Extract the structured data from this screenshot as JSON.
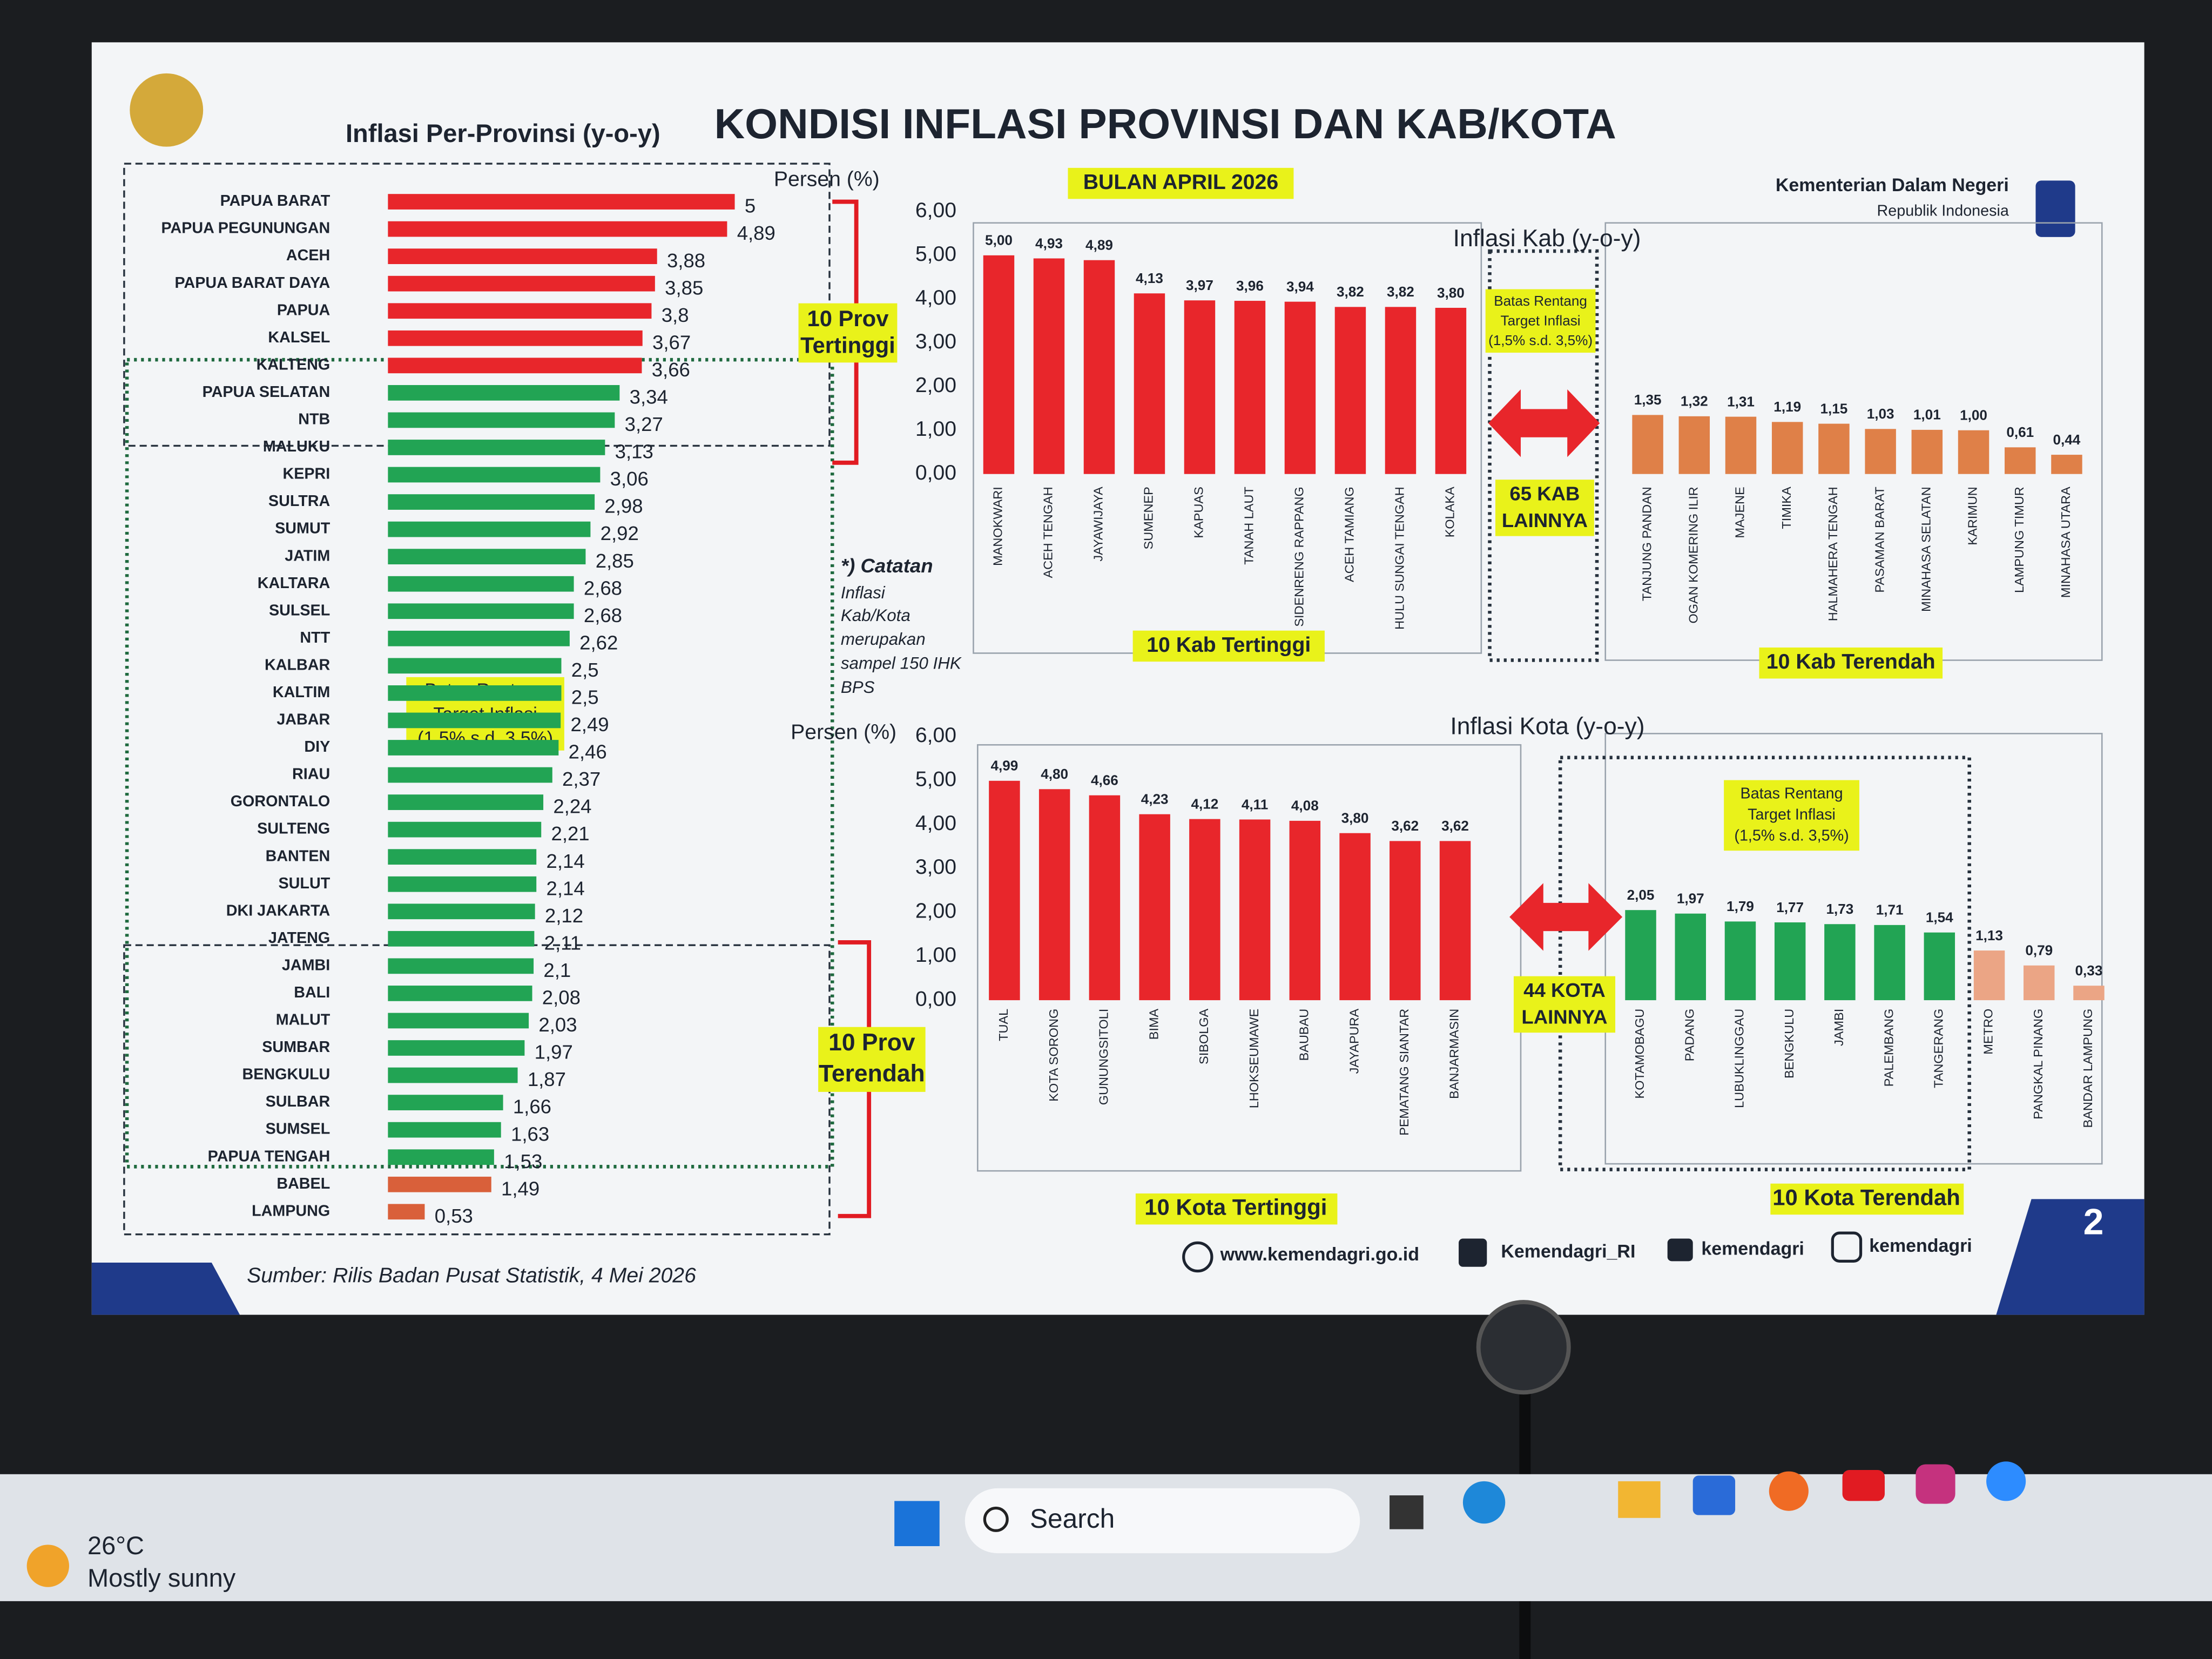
{
  "slide": {
    "title": "KONDISI INFLASI PROVINSI DAN KAB/KOTA",
    "subtitle": "BULAN APRIL 2026",
    "org": "Kementerian Dalam Negeri",
    "org_sub": "Republik Indonesia",
    "source": "Sumber: Rilis Badan Pusat Statistik, 4 Mei 2026",
    "website": "www.kemendagri.go.id",
    "facebook": "Kemendagri_RI",
    "twitter": "kemendagri",
    "instagram": "kemendagri",
    "page": "2",
    "note": [
      "*) Catatan",
      "Inflasi",
      "Kab/Kota",
      "merupakan",
      "sampel 150 IHK",
      "BPS"
    ]
  },
  "taskbar": {
    "temperature": "26°C",
    "weather": "Mostly sunny",
    "search": "Search"
  },
  "chart_data": [
    {
      "type": "hbar",
      "title": "Inflasi Per-Provinsi (y-o-y)",
      "categories": [
        "PAPUA BARAT",
        "PAPUA PEGUNUNGAN",
        "ACEH",
        "PAPUA BARAT DAYA",
        "PAPUA",
        "KALSEL",
        "KALTENG",
        "PAPUA SELATAN",
        "NTB",
        "MALUKU",
        "KEPRI",
        "SULTRA",
        "SUMUT",
        "JATIM",
        "KALTARA",
        "SULSEL",
        "NTT",
        "KALBAR",
        "KALTIM",
        "JABAR",
        "DIY",
        "RIAU",
        "GORONTALO",
        "SULTENG",
        "BANTEN",
        "SULUT",
        "DKI JAKARTA",
        "JATENG",
        "JAMBI",
        "BALI",
        "MALUT",
        "SUMBAR",
        "BENGKULU",
        "SULBAR",
        "SUMSEL",
        "PAPUA TENGAH",
        "BABEL",
        "LAMPUNG"
      ],
      "values": [
        5,
        4.89,
        3.88,
        3.85,
        3.8,
        3.67,
        3.66,
        3.34,
        3.27,
        3.13,
        3.06,
        2.98,
        2.92,
        2.85,
        2.68,
        2.68,
        2.62,
        2.5,
        2.5,
        2.49,
        2.46,
        2.37,
        2.24,
        2.21,
        2.14,
        2.14,
        2.12,
        2.11,
        2.1,
        2.08,
        2.03,
        1.97,
        1.87,
        1.66,
        1.63,
        1.53,
        1.49,
        0.53
      ],
      "value_labels": [
        "5",
        "4,89",
        "3,88",
        "3,85",
        "3,8",
        "3,67",
        "3,66",
        "3,34",
        "3,27",
        "3,13",
        "3,06",
        "2,98",
        "2,92",
        "2,85",
        "2,68",
        "2,68",
        "2,62",
        "2,5",
        "2,5",
        "2,49",
        "2,46",
        "2,37",
        "2,24",
        "2,21",
        "2,14",
        "2,14",
        "2,12",
        "2,11",
        "2,1",
        "2,08",
        "2,03",
        "1,97",
        "1,87",
        "1,66",
        "1,63",
        "1,53",
        "1,49",
        "0,53"
      ],
      "colors": [
        "#e8262b",
        "#e8262b",
        "#e8262b",
        "#e8262b",
        "#e8262b",
        "#e8262b",
        "#e8262b",
        "#22a454",
        "#22a454",
        "#22a454",
        "#22a454",
        "#22a454",
        "#22a454",
        "#22a454",
        "#22a454",
        "#22a454",
        "#22a454",
        "#22a454",
        "#22a454",
        "#22a454",
        "#22a454",
        "#22a454",
        "#22a454",
        "#22a454",
        "#22a454",
        "#22a454",
        "#22a454",
        "#22a454",
        "#22a454",
        "#22a454",
        "#22a454",
        "#22a454",
        "#22a454",
        "#22a454",
        "#22a454",
        "#22a454",
        "#d9603a",
        "#d9603a"
      ],
      "xlim": [
        0,
        6
      ],
      "annotations": {
        "top": [
          "10 Prov",
          "Tertinggi"
        ],
        "bottom": [
          "10 Prov",
          "Terendah"
        ],
        "band": [
          "Batas Rentang",
          "Target Inflasi",
          "(1,5% s.d. 3,5%)"
        ]
      }
    },
    {
      "type": "bar",
      "title": "Inflasi Kab (y-o-y)",
      "y_label": "Persen (%)",
      "categories": [
        "MANOKWARI",
        "ACEH TENGAH",
        "JAYAWIJAYA",
        "SUMENEP",
        "KAPUAS",
        "TANAH LAUT",
        "SIDENRENG RAPPANG",
        "ACEH TAMIANG",
        "HULU SUNGAI TENGAH",
        "KOLAKA",
        "TANJUNG PANDAN",
        "OGAN KOMERING ILIR",
        "MAJENE",
        "TIMIKA",
        "HALMAHERA TENGAH",
        "PASAMAN BARAT",
        "MINAHASA SELATAN",
        "KARIMUN",
        "LAMPUNG TIMUR",
        "MINAHASA UTARA"
      ],
      "values": [
        5.0,
        4.93,
        4.89,
        4.13,
        3.97,
        3.96,
        3.94,
        3.82,
        3.82,
        3.8,
        1.35,
        1.32,
        1.31,
        1.19,
        1.15,
        1.03,
        1.01,
        1.0,
        0.61,
        0.44
      ],
      "value_labels": [
        "5,00",
        "4,93",
        "4,89",
        "4,13",
        "3,97",
        "3,96",
        "3,94",
        "3,82",
        "3,82",
        "3,80",
        "1,35",
        "1,32",
        "1,31",
        "1,19",
        "1,15",
        "1,03",
        "1,01",
        "1,00",
        "0,61",
        "0,44"
      ],
      "colors": [
        "#e8262b",
        "#e8262b",
        "#e8262b",
        "#e8262b",
        "#e8262b",
        "#e8262b",
        "#e8262b",
        "#e8262b",
        "#e8262b",
        "#e8262b",
        "#df8048",
        "#df8048",
        "#df8048",
        "#df8048",
        "#df8048",
        "#df8048",
        "#df8048",
        "#df8048",
        "#df8048",
        "#df8048"
      ],
      "ylim": [
        0,
        6
      ],
      "yticks": [
        {
          "value": 0,
          "label": "0,00"
        },
        {
          "value": 1,
          "label": "1,00"
        },
        {
          "value": 2,
          "label": "2,00"
        },
        {
          "value": 3,
          "label": "3,00"
        },
        {
          "value": 4,
          "label": "4,00"
        },
        {
          "value": 5,
          "label": "5,00"
        },
        {
          "value": 6,
          "label": "6,00"
        }
      ],
      "annotations": {
        "top": "10 Kab Tertinggi",
        "bottom": "10 Kab Terendah",
        "others": [
          "65 KAB",
          "LAINNYA"
        ],
        "band": [
          "Batas Rentang",
          "Target Inflasi",
          "(1,5% s.d. 3,5%)"
        ]
      }
    },
    {
      "type": "bar",
      "title": "Inflasi Kota (y-o-y)",
      "y_label": "Persen (%)",
      "categories": [
        "TUAL",
        "KOTA SORONG",
        "GUNUNGSITOLI",
        "BIMA",
        "SIBOLGA",
        "LHOKSEUMAWE",
        "BAUBAU",
        "JAYAPURA",
        "PEMATANG SIANTAR",
        "BANJARMASIN",
        "KOTAMOBAGU",
        "PADANG",
        "LUBUKLINGGAU",
        "BENGKULU",
        "JAMBI",
        "PALEMBANG",
        "TANGERANG",
        "METRO",
        "PANGKAL PINANG",
        "BANDAR LAMPUNG"
      ],
      "values": [
        4.99,
        4.8,
        4.66,
        4.23,
        4.12,
        4.11,
        4.08,
        3.8,
        3.62,
        3.62,
        2.05,
        1.97,
        1.79,
        1.77,
        1.73,
        1.71,
        1.54,
        1.13,
        0.79,
        0.33
      ],
      "value_labels": [
        "4,99",
        "4,80",
        "4,66",
        "4,23",
        "4,12",
        "4,11",
        "4,08",
        "3,80",
        "3,62",
        "3,62",
        "2,05",
        "1,97",
        "1,79",
        "1,77",
        "1,73",
        "1,71",
        "1,54",
        "1,13",
        "0,79",
        "0,33"
      ],
      "colors": [
        "#e8262b",
        "#e8262b",
        "#e8262b",
        "#e8262b",
        "#e8262b",
        "#e8262b",
        "#e8262b",
        "#e8262b",
        "#e8262b",
        "#e8262b",
        "#22a454",
        "#22a454",
        "#22a454",
        "#22a454",
        "#22a454",
        "#22a454",
        "#22a454",
        "#eba585",
        "#eba585",
        "#eba585"
      ],
      "ylim": [
        0,
        6
      ],
      "yticks": [
        {
          "value": 0,
          "label": "0,00"
        },
        {
          "value": 1,
          "label": "1,00"
        },
        {
          "value": 2,
          "label": "2,00"
        },
        {
          "value": 3,
          "label": "3,00"
        },
        {
          "value": 4,
          "label": "4,00"
        },
        {
          "value": 5,
          "label": "5,00"
        },
        {
          "value": 6,
          "label": "6,00"
        }
      ],
      "annotations": {
        "top": "10 Kota Tertinggi",
        "bottom": "10 Kota Terendah",
        "others": [
          "44 KOTA",
          "LAINNYA"
        ],
        "band": [
          "Batas Rentang",
          "Target Inflasi",
          "(1,5% s.d. 3,5%)"
        ]
      }
    }
  ]
}
